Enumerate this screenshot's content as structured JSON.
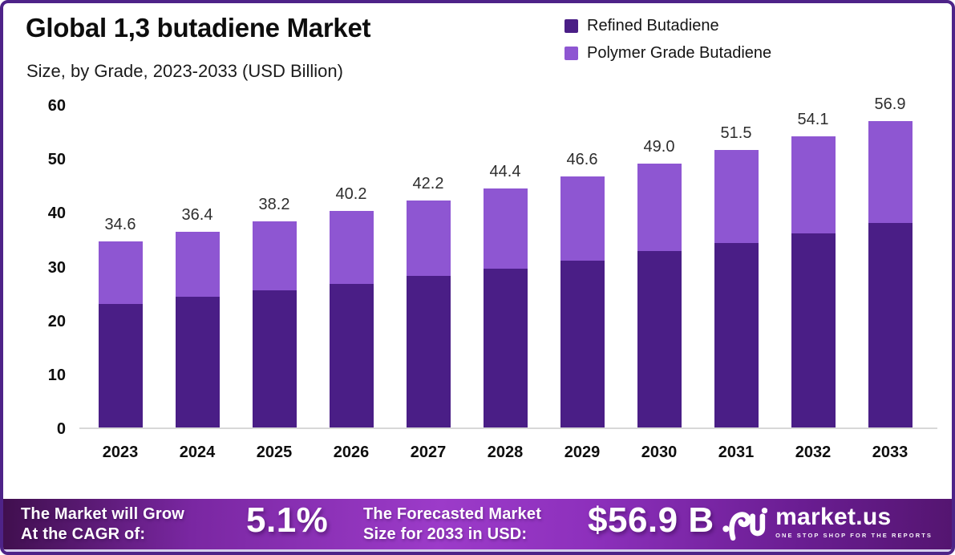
{
  "header": {
    "title": "Global 1,3 butadiene Market",
    "subtitle": "Size, by Grade, 2023-2033 (USD Billion)"
  },
  "chart_data": {
    "type": "bar",
    "stacked": true,
    "title": "Global 1,3 butadiene Market",
    "subtitle": "Size, by Grade, 2023-2033 (USD Billion)",
    "categories": [
      "2023",
      "2024",
      "2025",
      "2026",
      "2027",
      "2028",
      "2029",
      "2030",
      "2031",
      "2032",
      "2033"
    ],
    "series": [
      {
        "name": "Refined Butadiene",
        "color": "#4A1E86",
        "values": [
          23.0,
          24.2,
          25.4,
          26.7,
          28.1,
          29.5,
          31.0,
          32.7,
          34.3,
          36.1,
          37.9
        ]
      },
      {
        "name": "Polymer Grade Butadiene",
        "color": "#8E56D2",
        "values": [
          11.6,
          12.2,
          12.8,
          13.5,
          14.1,
          14.9,
          15.6,
          16.3,
          17.2,
          18.0,
          19.0
        ]
      }
    ],
    "totals": [
      34.6,
      36.4,
      38.2,
      40.2,
      42.2,
      44.4,
      46.6,
      49.0,
      51.5,
      54.1,
      56.9
    ],
    "total_labels": [
      "34.6",
      "36.4",
      "38.2",
      "40.2",
      "42.2",
      "44.4",
      "46.6",
      "49.0",
      "51.5",
      "54.1",
      "56.9"
    ],
    "ylim": [
      0,
      60
    ],
    "yticks": [
      0,
      10,
      20,
      30,
      40,
      50,
      60
    ],
    "grid": false,
    "legend_position": "top-right",
    "value_labels": "totals above bars"
  },
  "footer": {
    "cagr_line1": "The Market will Grow",
    "cagr_line2": "At the CAGR of:",
    "cagr_value": "5.1%",
    "forecast_line1": "The Forecasted Market",
    "forecast_line2": "Size for 2033 in USD:",
    "forecast_value": "$56.9 B",
    "brand_name": "market.us",
    "brand_tagline": "ONE STOP SHOP FOR THE REPORTS"
  },
  "colors": {
    "frame_border": "#4E2388",
    "axis_line": "#D8D8D8",
    "refined": "#4A1E86",
    "polymer": "#8E56D2",
    "banner_gradient": [
      "#400F4E",
      "#7A27A2",
      "#9C3BC9",
      "#8D30BC",
      "#6A1D92",
      "#541570"
    ],
    "banner_edge": "#D5CDEC",
    "text_dark": "#0E0E0E",
    "text_white": "#FFFFFF"
  }
}
